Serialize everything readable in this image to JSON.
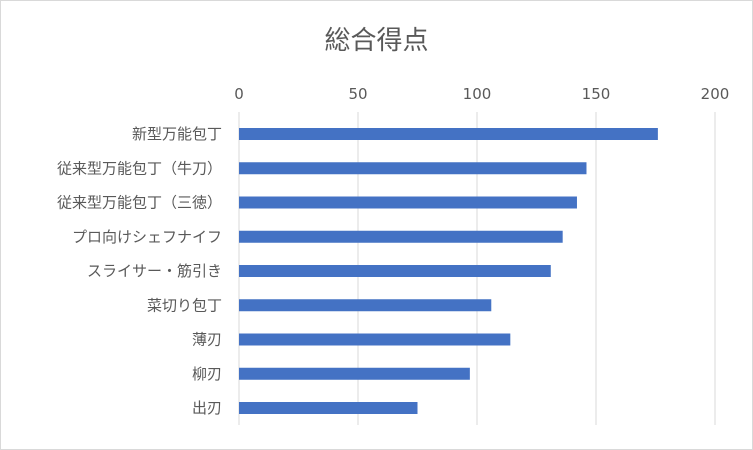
{
  "chart_data": {
    "type": "bar",
    "orientation": "horizontal",
    "title": "総合得点",
    "categories": [
      "新型万能包丁",
      "従来型万能包丁（牛刀）",
      "従来型万能包丁（三徳）",
      "プロ向けシェフナイフ",
      "スライサー・筋引き",
      "菜切り包丁",
      "薄刃",
      "柳刃",
      "出刃"
    ],
    "values": [
      176,
      146,
      142,
      136,
      131,
      106,
      114,
      97,
      75
    ],
    "xlim": [
      0,
      200
    ],
    "xticks": [
      0,
      50,
      100,
      150,
      200
    ],
    "x_axis_position": "top",
    "grid": true,
    "legend": "none",
    "bar_color": "#4472c4",
    "grid_color": "#d9d9d9",
    "text_color": "#595959"
  }
}
